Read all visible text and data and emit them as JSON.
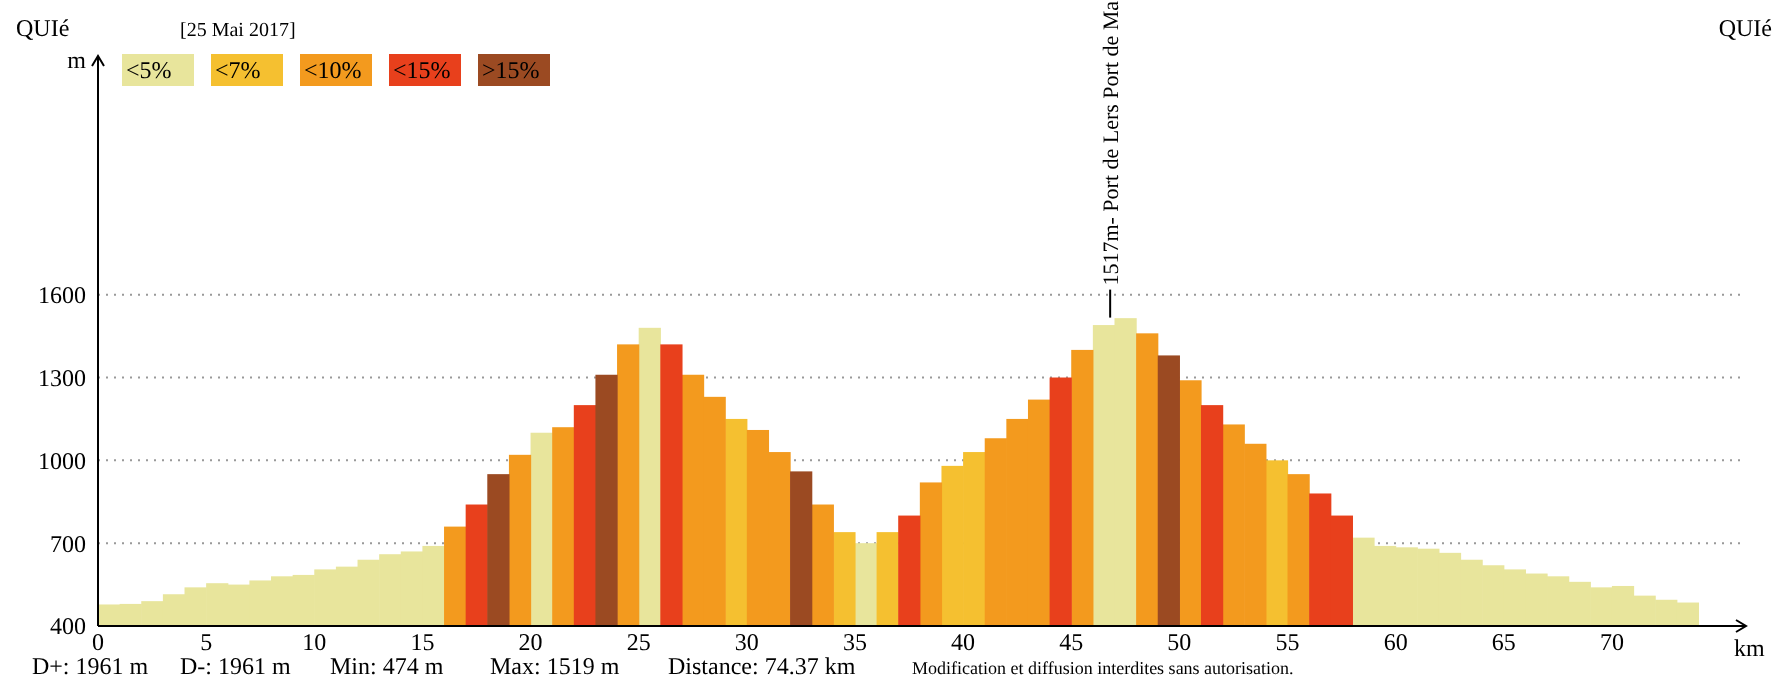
{
  "chart_data": {
    "type": "bar",
    "xlabel": "km",
    "ylabel": "m",
    "annotations": [
      "QUIé",
      "QUIé",
      "[25 Mai 2017]",
      "D+: 1961 m",
      "D-: 1961 m",
      "Min: 474 m",
      "Max: 1519 m",
      "Distance: 74.37 km",
      "Modification et diffusion interdites sans autorisation.",
      {
        "text": "1517m- Port de Lers Port de Ma",
        "x": 46.8,
        "y": 1517
      }
    ],
    "xlim": [
      0,
      76.2
    ],
    "xticks": [
      0,
      5,
      10,
      15,
      20,
      25,
      30,
      35,
      40,
      45,
      50,
      55,
      60,
      65,
      70
    ],
    "ylim": [
      400,
      2450
    ],
    "yticks": [
      400,
      700,
      1000,
      1300,
      1600
    ],
    "grid": "y",
    "legend": "top left",
    "series": [
      {
        "name": "<5%",
        "color": "#e8e59c",
        "x": [
          0.5,
          1.5,
          2.5,
          3.5,
          4.5,
          5.5,
          6.5,
          7.5,
          8.5,
          9.5,
          10.5,
          11.5,
          12.5,
          13.5,
          14.5,
          15.5,
          20.5,
          25.5,
          35.5,
          46.5,
          47.5,
          58.5,
          59.5,
          60.5,
          61.5,
          62.5,
          63.5,
          64.5,
          65.5,
          66.5,
          67.5,
          68.5,
          69.5,
          70.5,
          71.5,
          72.5,
          73.5
        ],
        "values": [
          478,
          480,
          490,
          515,
          540,
          555,
          550,
          565,
          580,
          585,
          605,
          615,
          640,
          660,
          670,
          690,
          1100,
          1480,
          700,
          1490,
          1515,
          720,
          690,
          685,
          680,
          665,
          640,
          620,
          605,
          590,
          580,
          560,
          540,
          545,
          510,
          495,
          485
        ]
      },
      {
        "name": "<7%",
        "color": "#f5c030",
        "x": [
          29.5,
          34.5,
          36.5,
          39.5,
          40.5,
          54.5
        ],
        "values": [
          1150,
          740,
          740,
          980,
          1030,
          1000
        ]
      },
      {
        "name": "<10%",
        "color": "#f39a1e",
        "x": [
          16.5,
          19.5,
          21.5,
          24.5,
          27.5,
          28.5,
          30.5,
          31.5,
          33.5,
          38.5,
          41.5,
          42.5,
          43.5,
          45.5,
          48.5,
          50.5,
          52.5,
          53.5,
          55.5
        ],
        "values": [
          760,
          1020,
          1120,
          1420,
          1310,
          1230,
          1110,
          1030,
          840,
          920,
          1080,
          1150,
          1220,
          1400,
          1460,
          1290,
          1130,
          1060,
          950
        ]
      },
      {
        "name": "<15%",
        "color": "#e8401c",
        "x": [
          17.5,
          22.5,
          26.5,
          37.5,
          44.5,
          51.5,
          56.5,
          57.5
        ],
        "values": [
          840,
          1200,
          1420,
          800,
          1300,
          1200,
          880,
          800
        ]
      },
      {
        "name": ">15%",
        "color": "#9b4a22",
        "x": [
          18.5,
          23.5,
          32.5,
          49.5
        ],
        "values": [
          950,
          1310,
          960,
          1380
        ]
      }
    ]
  }
}
